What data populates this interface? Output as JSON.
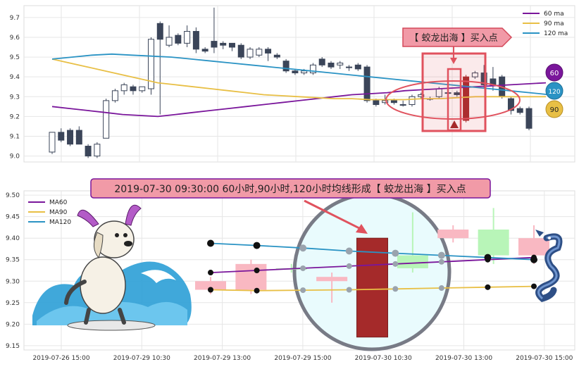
{
  "colors": {
    "ma60": "#7a169b",
    "ma90": "#e8bf45",
    "ma120": "#2a93c4",
    "candle_down": "#3b4559",
    "candle_up_outline": "#3b4559",
    "highlight_red": "#e0525e",
    "big_bar": "#a52a2a",
    "up_green": "#b8f5b8",
    "down_pink": "#f9b8c2",
    "magnifier_fill": "#e9fbfd",
    "magnifier_ring": "#787b86"
  },
  "top_panel": {
    "annotation_label": "【 蛟龙出海 】买入点",
    "legend": [
      "60 ma",
      "90 ma",
      "120 ma"
    ],
    "badges": [
      "60",
      "120",
      "90"
    ],
    "icons": [
      "dragon-girl-icon-omitted"
    ]
  },
  "bottom_panel": {
    "annotation_label": "2019-07-30 09:30:00 60小时,90小时,120小时均线形成【 蛟龙出海 】买入点",
    "legend": [
      "MA60",
      "MA90",
      "MA120"
    ],
    "illustrations": [
      "surfing-dog-icon",
      "blue-dragon-icon"
    ]
  },
  "chart_data": [
    {
      "type": "candlestick",
      "ylim": [
        8.97,
        9.76
      ],
      "yticks": [
        "9.0",
        "9.1",
        "9.2",
        "9.3",
        "9.4",
        "9.5",
        "9.6",
        "9.7"
      ],
      "candles": [
        [
          9.02,
          9.12,
          9.01,
          9.12
        ],
        [
          9.12,
          9.08,
          9.07,
          9.14
        ],
        [
          9.13,
          9.06,
          9.05,
          9.14
        ],
        [
          9.13,
          9.06,
          9.06,
          9.15
        ],
        [
          9.05,
          9.0,
          8.99,
          9.06
        ],
        [
          9.0,
          9.06,
          8.99,
          9.07
        ],
        [
          9.09,
          9.28,
          9.09,
          9.29
        ],
        [
          9.28,
          9.33,
          9.27,
          9.34
        ],
        [
          9.33,
          9.36,
          9.31,
          9.37
        ],
        [
          9.35,
          9.33,
          9.31,
          9.36
        ],
        [
          9.33,
          9.35,
          9.32,
          9.35
        ],
        [
          9.34,
          9.59,
          9.31,
          9.6
        ],
        [
          9.67,
          9.59,
          9.21,
          9.68
        ],
        [
          9.56,
          9.6,
          9.55,
          9.66
        ],
        [
          9.61,
          9.57,
          9.56,
          9.62
        ],
        [
          9.57,
          9.63,
          9.55,
          9.66
        ],
        [
          9.63,
          9.54,
          9.52,
          9.65
        ],
        [
          9.54,
          9.53,
          9.52,
          9.55
        ],
        [
          9.58,
          9.55,
          9.52,
          9.75
        ],
        [
          9.57,
          9.56,
          9.54,
          9.58
        ],
        [
          9.57,
          9.55,
          9.53,
          9.57
        ],
        [
          9.56,
          9.5,
          9.49,
          9.57
        ],
        [
          9.5,
          9.54,
          9.49,
          9.55
        ],
        [
          9.51,
          9.54,
          9.5,
          9.55
        ],
        [
          9.54,
          9.52,
          9.48,
          9.55
        ],
        [
          9.51,
          9.5,
          9.49,
          9.52
        ],
        [
          9.48,
          9.43,
          9.42,
          9.49
        ],
        [
          9.43,
          9.42,
          9.41,
          9.44
        ],
        [
          9.42,
          9.43,
          9.41,
          9.44
        ],
        [
          9.42,
          9.46,
          9.41,
          9.47
        ],
        [
          9.49,
          9.46,
          9.45,
          9.5
        ],
        [
          9.47,
          9.45,
          9.44,
          9.48
        ],
        [
          9.46,
          9.47,
          9.44,
          9.48
        ],
        [
          9.45,
          9.45,
          9.43,
          9.46
        ],
        [
          9.46,
          9.44,
          9.43,
          9.47
        ],
        [
          9.45,
          9.28,
          9.27,
          9.46
        ],
        [
          9.28,
          9.26,
          9.25,
          9.29
        ],
        [
          9.27,
          9.28,
          9.26,
          9.31
        ],
        [
          9.28,
          9.27,
          9.26,
          9.29
        ],
        [
          9.26,
          9.26,
          9.25,
          9.28
        ],
        [
          9.26,
          9.3,
          9.25,
          9.31
        ],
        [
          9.3,
          9.31,
          9.29,
          9.32
        ],
        [
          9.29,
          9.29,
          9.28,
          9.3
        ],
        [
          9.3,
          9.34,
          9.29,
          9.35
        ],
        [
          9.32,
          9.32,
          9.31,
          9.33
        ],
        [
          9.32,
          9.31,
          9.3,
          9.33
        ],
        [
          9.18,
          9.4,
          9.17,
          9.41
        ],
        [
          9.4,
          9.42,
          9.39,
          9.43
        ],
        [
          9.42,
          9.36,
          9.34,
          9.46
        ],
        [
          9.39,
          9.36,
          9.33,
          9.45
        ],
        [
          9.4,
          9.3,
          9.29,
          9.41
        ],
        [
          9.29,
          9.23,
          9.21,
          9.3
        ],
        [
          9.24,
          9.22,
          9.21,
          9.25
        ],
        [
          9.24,
          9.14,
          9.13,
          9.25
        ]
      ],
      "series": [
        {
          "name": "60 ma",
          "values": [
            9.25,
            9.24,
            9.23,
            9.22,
            9.21,
            9.205,
            9.2,
            9.21,
            9.22,
            9.23,
            9.24,
            9.25,
            9.26,
            9.27,
            9.28,
            9.29,
            9.3,
            9.31,
            9.315,
            9.32,
            9.33,
            9.335,
            9.34,
            9.345,
            9.35,
            9.355,
            9.36,
            9.365,
            9.37
          ]
        },
        {
          "name": "90 ma",
          "values": [
            9.49,
            9.47,
            9.45,
            9.43,
            9.41,
            9.39,
            9.37,
            9.36,
            9.35,
            9.34,
            9.33,
            9.32,
            9.31,
            9.305,
            9.3,
            9.295,
            9.29,
            9.29,
            9.285,
            9.285,
            9.285,
            9.29,
            9.29,
            9.295,
            9.3,
            9.3,
            9.3,
            9.3,
            9.3
          ]
        },
        {
          "name": "120 ma",
          "values": [
            9.49,
            9.5,
            9.51,
            9.515,
            9.51,
            9.505,
            9.5,
            9.49,
            9.48,
            9.47,
            9.46,
            9.45,
            9.44,
            9.43,
            9.42,
            9.41,
            9.4,
            9.39,
            9.38,
            9.37,
            9.36,
            9.35,
            9.34,
            9.33,
            9.32,
            9.31
          ]
        }
      ]
    },
    {
      "type": "candlestick",
      "ylim": [
        9.14,
        9.51
      ],
      "yticks": [
        "9.15",
        "9.20",
        "9.25",
        "9.30",
        "9.35",
        "9.40",
        "9.45",
        "9.50"
      ],
      "x_tick_labels": [
        "2019-07-26 15:00",
        "2019-07-29 10:30",
        "2019-07-29 13:00",
        "2019-07-29 15:00",
        "2019-07-30 10:30",
        "2019-07-30 13:00",
        "2019-07-30 15:00"
      ],
      "candles": [
        [
          9.3,
          9.28,
          9.27,
          9.31
        ],
        [
          9.34,
          9.28,
          9.27,
          9.35
        ],
        [
          9.33,
          9.33,
          9.32,
          9.34
        ],
        [
          9.31,
          9.3,
          9.25,
          9.32
        ],
        [
          9.17,
          9.4,
          9.17,
          9.4
        ],
        [
          9.33,
          9.36,
          9.32,
          9.46
        ],
        [
          9.42,
          9.4,
          9.39,
          9.43
        ],
        [
          9.36,
          9.42,
          9.34,
          9.47
        ],
        [
          9.4,
          9.36,
          9.34,
          9.43
        ]
      ],
      "series": [
        {
          "name": "MA60",
          "values": [
            9.32,
            9.325,
            9.33,
            9.335,
            9.34,
            9.345,
            9.35,
            9.355
          ]
        },
        {
          "name": "MA90",
          "values": [
            9.28,
            9.278,
            9.279,
            9.28,
            9.282,
            9.284,
            9.286,
            9.288
          ]
        },
        {
          "name": "MA120",
          "values": [
            9.388,
            9.383,
            9.377,
            9.37,
            9.365,
            9.36,
            9.355,
            9.35
          ]
        }
      ]
    }
  ]
}
